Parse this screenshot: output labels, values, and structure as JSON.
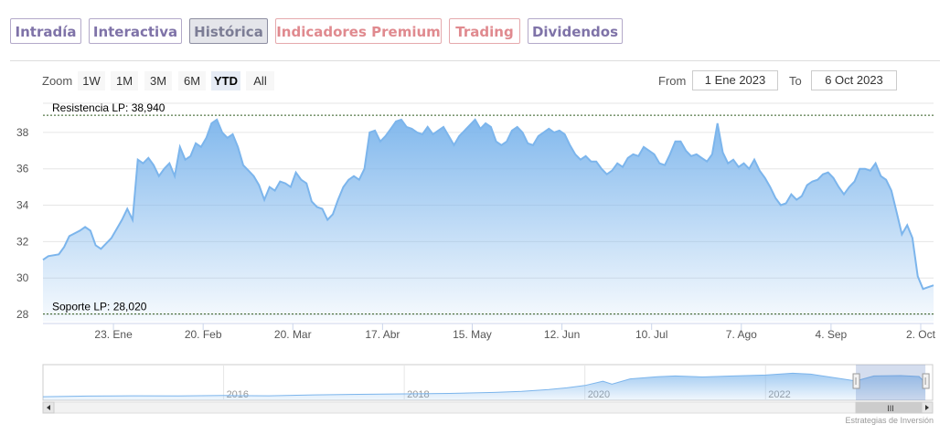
{
  "tabs": [
    {
      "label": "Intradía",
      "state": "normal"
    },
    {
      "label": "Interactiva",
      "state": "normal"
    },
    {
      "label": "Histórica",
      "state": "active"
    },
    {
      "label": "Indicadores Premium",
      "state": "premium"
    },
    {
      "label": "Trading",
      "state": "premium"
    },
    {
      "label": "Dividendos",
      "state": "normal"
    }
  ],
  "zoom": {
    "label": "Zoom",
    "buttons": [
      "1W",
      "1M",
      "3M",
      "6M",
      "YTD",
      "All"
    ],
    "selected": "YTD"
  },
  "range": {
    "from_label": "From",
    "from_value": "1 Ene 2023",
    "to_label": "To",
    "to_value": "6 Oct 2023"
  },
  "credit": "Estrategias de Inversión",
  "colors": {
    "series": "#7cb5ec",
    "tab_text": "#7f73a8",
    "premium_text": "#e08a8f",
    "active_tab_bg": "#e4e5ea",
    "reference_line": "#2f5a1f"
  },
  "chart_data": {
    "type": "area",
    "title": "",
    "x_ticks": [
      "23. Ene",
      "20. Feb",
      "20. Mar",
      "17. Abr",
      "15. May",
      "12. Jun",
      "10. Jul",
      "7. Ago",
      "4. Sep",
      "2. Oct"
    ],
    "x_tick_days": [
      22,
      50,
      78,
      106,
      134,
      162,
      190,
      218,
      246,
      274
    ],
    "xlim_days": [
      0,
      278
    ],
    "y_ticks": [
      28,
      30,
      32,
      34,
      36,
      38
    ],
    "ylim": [
      27.6,
      39.6
    ],
    "grid": true,
    "reference_lines": [
      {
        "label": "Resistencia LP: 38,940",
        "value": 38.94
      },
      {
        "label": "Soporte LP: 28,020",
        "value": 28.02
      }
    ],
    "series": [
      {
        "values": [
          [
            0,
            31.0
          ],
          [
            1,
            31.2
          ],
          [
            3,
            31.3
          ],
          [
            4,
            31.7
          ],
          [
            5,
            32.3
          ],
          [
            7,
            32.6
          ],
          [
            8,
            32.8
          ],
          [
            9,
            32.6
          ],
          [
            10,
            31.8
          ],
          [
            11,
            31.6
          ],
          [
            13,
            32.2
          ],
          [
            15,
            33.2
          ],
          [
            16,
            33.8
          ],
          [
            17,
            33.2
          ],
          [
            18,
            36.5
          ],
          [
            19,
            36.3
          ],
          [
            20,
            36.6
          ],
          [
            21,
            36.2
          ],
          [
            22,
            35.6
          ],
          [
            23,
            36.0
          ],
          [
            24,
            36.3
          ],
          [
            25,
            35.6
          ],
          [
            26,
            37.2
          ],
          [
            27,
            36.5
          ],
          [
            28,
            36.7
          ],
          [
            29,
            37.4
          ],
          [
            30,
            37.2
          ],
          [
            31,
            37.7
          ],
          [
            32,
            38.5
          ],
          [
            33,
            38.7
          ],
          [
            34,
            38.0
          ],
          [
            35,
            37.7
          ],
          [
            36,
            37.9
          ],
          [
            37,
            37.2
          ],
          [
            38,
            36.2
          ],
          [
            39,
            35.9
          ],
          [
            40,
            35.6
          ],
          [
            41,
            35.1
          ],
          [
            42,
            34.3
          ],
          [
            43,
            35.0
          ],
          [
            44,
            34.8
          ],
          [
            45,
            35.3
          ],
          [
            46,
            35.2
          ],
          [
            47,
            35.0
          ],
          [
            48,
            35.8
          ],
          [
            49,
            35.4
          ],
          [
            50,
            35.2
          ],
          [
            51,
            34.2
          ],
          [
            52,
            33.9
          ],
          [
            53,
            33.8
          ],
          [
            54,
            33.2
          ],
          [
            55,
            33.5
          ],
          [
            56,
            34.3
          ],
          [
            57,
            35.0
          ],
          [
            58,
            35.4
          ],
          [
            59,
            35.6
          ],
          [
            60,
            35.4
          ],
          [
            61,
            36.0
          ],
          [
            62,
            38.0
          ],
          [
            63,
            38.1
          ],
          [
            64,
            37.5
          ],
          [
            65,
            37.8
          ],
          [
            66,
            38.2
          ],
          [
            67,
            38.6
          ],
          [
            68,
            38.7
          ],
          [
            69,
            38.3
          ],
          [
            70,
            38.2
          ],
          [
            71,
            38.0
          ],
          [
            72,
            37.9
          ],
          [
            73,
            38.3
          ],
          [
            74,
            37.9
          ],
          [
            75,
            38.1
          ],
          [
            76,
            38.3
          ],
          [
            77,
            37.8
          ],
          [
            78,
            37.3
          ],
          [
            79,
            37.8
          ],
          [
            80,
            38.1
          ],
          [
            81,
            38.4
          ],
          [
            82,
            38.7
          ],
          [
            83,
            38.2
          ],
          [
            84,
            38.5
          ],
          [
            85,
            38.3
          ],
          [
            86,
            37.5
          ],
          [
            87,
            37.3
          ],
          [
            88,
            37.5
          ],
          [
            89,
            38.1
          ],
          [
            90,
            38.3
          ],
          [
            91,
            38.0
          ],
          [
            92,
            37.4
          ],
          [
            93,
            37.3
          ],
          [
            94,
            37.8
          ],
          [
            95,
            38.0
          ],
          [
            96,
            38.2
          ],
          [
            97,
            38.0
          ],
          [
            98,
            38.1
          ],
          [
            99,
            37.9
          ],
          [
            100,
            37.3
          ],
          [
            101,
            36.8
          ],
          [
            102,
            36.5
          ],
          [
            103,
            36.7
          ],
          [
            104,
            36.4
          ],
          [
            105,
            36.4
          ],
          [
            106,
            36.0
          ],
          [
            107,
            35.7
          ],
          [
            108,
            35.9
          ],
          [
            109,
            36.3
          ],
          [
            110,
            36.1
          ],
          [
            111,
            36.6
          ],
          [
            112,
            36.8
          ],
          [
            113,
            36.7
          ],
          [
            114,
            37.2
          ],
          [
            115,
            37.0
          ],
          [
            116,
            36.8
          ],
          [
            117,
            36.3
          ],
          [
            118,
            36.2
          ],
          [
            119,
            36.8
          ],
          [
            120,
            37.5
          ],
          [
            121,
            37.5
          ],
          [
            122,
            37.0
          ],
          [
            123,
            36.7
          ],
          [
            124,
            36.8
          ],
          [
            125,
            36.6
          ],
          [
            126,
            36.4
          ],
          [
            127,
            36.8
          ],
          [
            128,
            38.5
          ],
          [
            129,
            36.9
          ],
          [
            130,
            36.3
          ],
          [
            131,
            36.5
          ],
          [
            132,
            36.1
          ],
          [
            133,
            36.3
          ],
          [
            134,
            36.0
          ],
          [
            135,
            36.5
          ],
          [
            136,
            35.9
          ],
          [
            137,
            35.5
          ],
          [
            138,
            35.0
          ],
          [
            139,
            34.4
          ],
          [
            140,
            34.0
          ],
          [
            141,
            34.1
          ],
          [
            142,
            34.6
          ],
          [
            143,
            34.3
          ],
          [
            144,
            34.5
          ],
          [
            145,
            35.1
          ],
          [
            146,
            35.3
          ],
          [
            147,
            35.4
          ],
          [
            148,
            35.7
          ],
          [
            149,
            35.8
          ],
          [
            150,
            35.5
          ],
          [
            151,
            35.0
          ],
          [
            152,
            34.6
          ],
          [
            153,
            35.0
          ],
          [
            154,
            35.3
          ],
          [
            155,
            36.0
          ],
          [
            156,
            36.0
          ],
          [
            157,
            35.9
          ],
          [
            158,
            36.3
          ],
          [
            159,
            35.6
          ],
          [
            160,
            35.4
          ],
          [
            161,
            34.8
          ],
          [
            162,
            33.6
          ],
          [
            163,
            32.4
          ],
          [
            164,
            32.9
          ],
          [
            165,
            32.2
          ],
          [
            166,
            30.1
          ],
          [
            167,
            29.4
          ],
          [
            168,
            29.5
          ],
          [
            169,
            29.6
          ]
        ]
      }
    ]
  },
  "navigator": {
    "x_labels": [
      "2016",
      "2018",
      "2020",
      "2022"
    ],
    "x_label_years": [
      2016,
      2018,
      2020,
      2022
    ],
    "xlim_years": [
      2014.0,
      2023.85
    ],
    "ylim": [
      15,
      45
    ],
    "selected_years": [
      2023.0,
      2023.77
    ],
    "scroll_handle": "III",
    "values": [
      [
        2014.0,
        18.0
      ],
      [
        2014.5,
        18.5
      ],
      [
        2015.0,
        18.8
      ],
      [
        2015.5,
        18.6
      ],
      [
        2016.0,
        19.0
      ],
      [
        2016.5,
        18.8
      ],
      [
        2017.0,
        19.5
      ],
      [
        2017.5,
        20.0
      ],
      [
        2018.0,
        20.4
      ],
      [
        2018.5,
        20.8
      ],
      [
        2019.0,
        21.6
      ],
      [
        2019.3,
        22.5
      ],
      [
        2019.6,
        24.0
      ],
      [
        2019.8,
        25.5
      ],
      [
        2020.0,
        27.5
      ],
      [
        2020.2,
        31.0
      ],
      [
        2020.3,
        28.5
      ],
      [
        2020.5,
        33.0
      ],
      [
        2020.8,
        34.8
      ],
      [
        2021.0,
        35.5
      ],
      [
        2021.3,
        34.6
      ],
      [
        2021.6,
        35.4
      ],
      [
        2022.0,
        36.2
      ],
      [
        2022.3,
        37.8
      ],
      [
        2022.5,
        37.0
      ],
      [
        2022.8,
        33.5
      ],
      [
        2023.0,
        31.2
      ],
      [
        2023.2,
        35.5
      ],
      [
        2023.5,
        35.8
      ],
      [
        2023.7,
        35.0
      ],
      [
        2023.77,
        29.6
      ]
    ]
  }
}
